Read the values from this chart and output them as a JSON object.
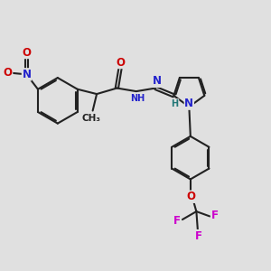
{
  "bg_color": "#e0e0e0",
  "bond_color": "#222222",
  "bond_width": 1.5,
  "dbl_sep": 0.055,
  "atom_colors": {
    "O": "#cc0000",
    "N": "#2222cc",
    "F": "#cc00cc",
    "H": "#227777",
    "C": "#222222"
  },
  "fs": 8.5,
  "fs_small": 7.0
}
